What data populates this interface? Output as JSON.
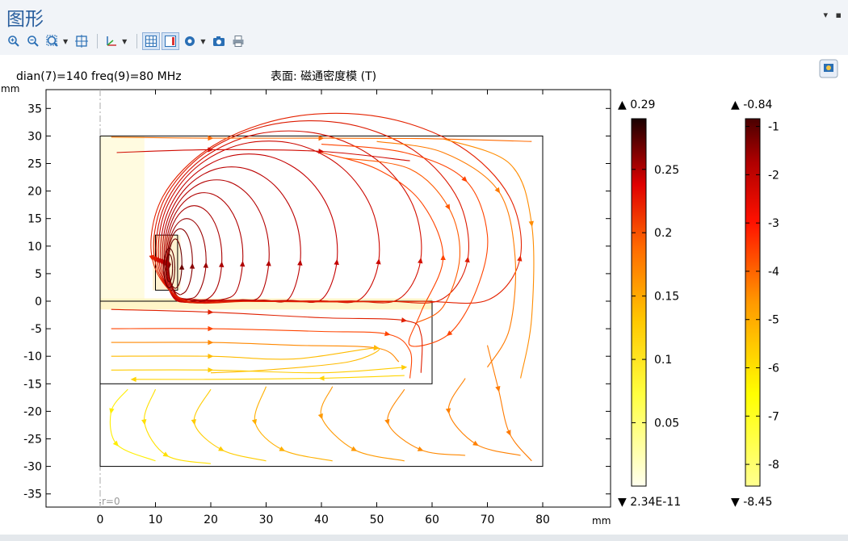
{
  "window": {
    "title": "图形",
    "menu_glyph": "▾",
    "pin_glyph": "▪"
  },
  "toolbar": {
    "buttons": [
      {
        "icon": "zoom-in-icon"
      },
      {
        "icon": "zoom-out-icon"
      },
      {
        "icon": "zoom-box-icon"
      },
      {
        "icon": "zoom-extents-icon"
      },
      {
        "icon": "axis-orientation-icon"
      },
      {
        "icon": "grid-icon"
      },
      {
        "icon": "legend-icon"
      },
      {
        "icon": "scene-light-icon"
      },
      {
        "icon": "camera-icon"
      },
      {
        "icon": "print-icon"
      }
    ]
  },
  "colors": {
    "axis": "#000000",
    "grid_dash": "#aaaaaa",
    "plot_bg": "#ffffff"
  },
  "chart_data": {
    "type": "streamline",
    "parameters_label": "dian(7)=140 freq(9)=80 MHz",
    "surface_label": "表面: 磁通密度模 (T)",
    "xunit": "mm",
    "yunit": "mm",
    "xlim": [
      -10,
      92
    ],
    "ylim": [
      -37,
      37
    ],
    "xticks": [
      0,
      10,
      20,
      30,
      40,
      50,
      60,
      70,
      80
    ],
    "yticks": [
      35,
      30,
      25,
      20,
      15,
      10,
      5,
      0,
      -5,
      -10,
      -15,
      -20,
      -25,
      -30,
      -35
    ],
    "axis_annotation": "r=0",
    "geometry": {
      "domain": [
        [
          0,
          -30
        ],
        [
          80,
          30
        ]
      ],
      "inner_block": [
        [
          0,
          -15
        ],
        [
          60,
          0
        ]
      ],
      "coil": [
        [
          10,
          2
        ],
        [
          14,
          12
        ]
      ]
    },
    "surface_colorbar": {
      "max_label": "▲ 0.29",
      "min_label": "▼ 2.34E-11",
      "ticks": [
        0.25,
        0.2,
        0.15,
        0.1,
        0.05
      ],
      "range": [
        0,
        0.29
      ]
    },
    "streamline_colorbar": {
      "max_label": "▲ -0.84",
      "min_label": "▼ -8.45",
      "ticks": [
        -1,
        -2,
        -3,
        -4,
        -5,
        -6,
        -7,
        -8
      ],
      "range": [
        -8.45,
        -0.84
      ]
    }
  }
}
